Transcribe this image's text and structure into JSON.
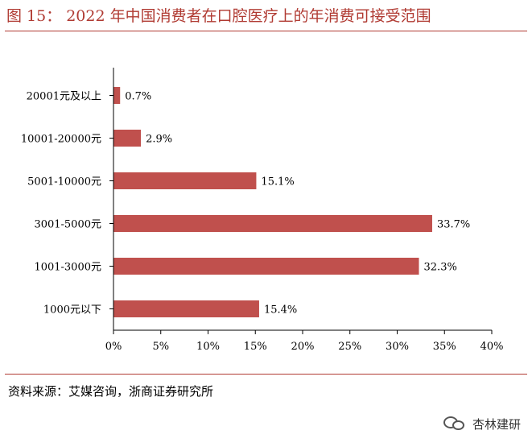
{
  "figure": {
    "label": "图 15：",
    "title": "2022 年中国消费者在口腔医疗上的年消费可接受范围"
  },
  "source": "资料来源：艾媒咨询，浙商证券研究所",
  "watermark": "杏林建研",
  "colors": {
    "bar": "#c0504d",
    "accent": "#b03a32",
    "axis": "#000000"
  },
  "chart_data": {
    "type": "bar",
    "orientation": "horizontal",
    "categories": [
      "20001元及以上",
      "10001-20000元",
      "5001-10000元",
      "3001-5000元",
      "1001-3000元",
      "1000元以下"
    ],
    "values": [
      0.7,
      2.9,
      15.1,
      33.7,
      32.3,
      15.4
    ],
    "data_labels": [
      "0.7%",
      "2.9%",
      "15.1%",
      "33.7%",
      "32.3%",
      "15.4%"
    ],
    "xlim": [
      0,
      40
    ],
    "xticks": [
      0,
      5,
      10,
      15,
      20,
      25,
      30,
      35,
      40
    ],
    "xtick_labels": [
      "0%",
      "5%",
      "10%",
      "15%",
      "20%",
      "25%",
      "30%",
      "35%",
      "40%"
    ],
    "title": "",
    "xlabel": "",
    "ylabel": "",
    "grid": false,
    "legend": "none"
  }
}
